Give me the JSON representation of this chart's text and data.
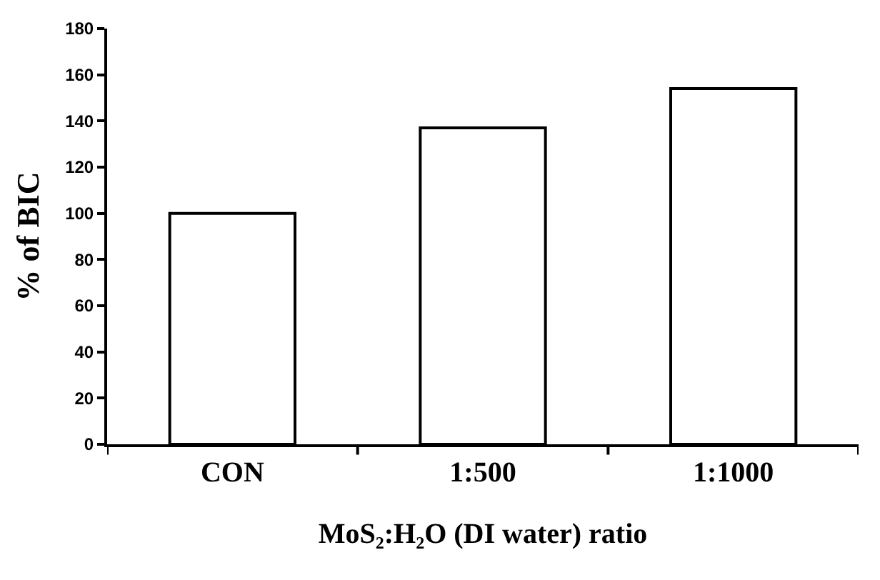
{
  "chart_data": {
    "type": "bar",
    "xlabel": "MoS₂:H₂O (DI water) ratio",
    "ylabel": "% of BIC",
    "categories": [
      "CON",
      "1:500",
      "1:1000"
    ],
    "values": [
      100,
      137,
      154
    ],
    "color": "#ffffff",
    "ylim": [
      0,
      180
    ],
    "yticks": [
      0,
      20,
      40,
      60,
      80,
      100,
      120,
      140,
      160,
      180
    ]
  }
}
